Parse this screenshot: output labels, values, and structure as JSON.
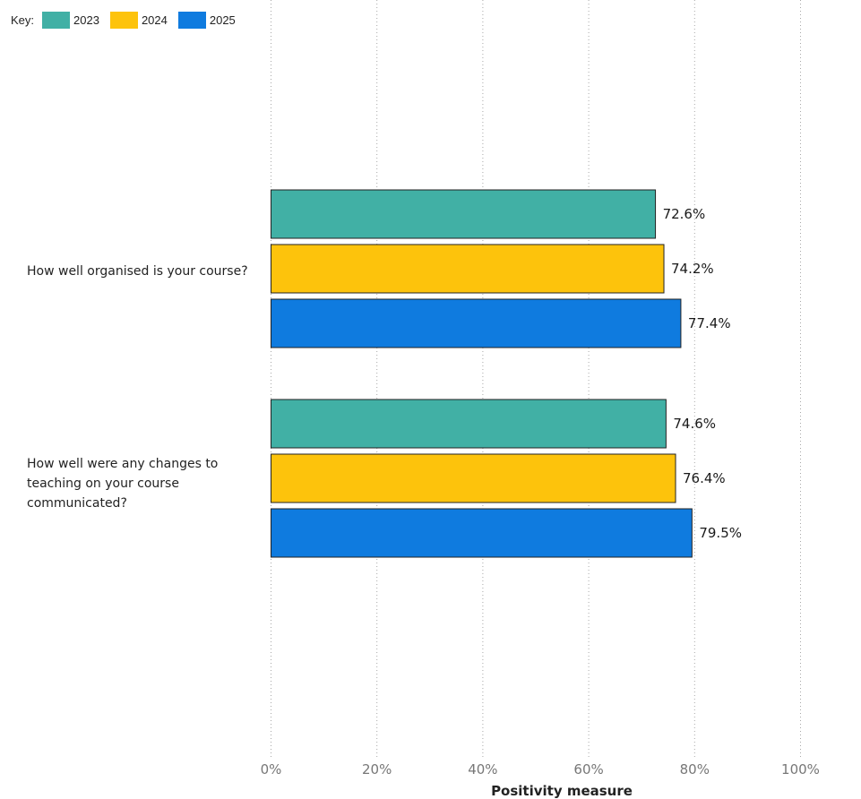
{
  "legend": {
    "key_label": "Key:",
    "items": [
      {
        "label": "2023",
        "color": "#41b0a5"
      },
      {
        "label": "2024",
        "color": "#fdc30c"
      },
      {
        "label": "2025",
        "color": "#0f7bdf"
      }
    ]
  },
  "chart_data": {
    "type": "bar",
    "orientation": "horizontal",
    "categories": [
      "How well organised is your course?",
      "How well were any changes to teaching on your course communicated?"
    ],
    "category_lines": [
      [
        "How well organised is your course?"
      ],
      [
        "How well were any changes to",
        "teaching on your course",
        "communicated?"
      ]
    ],
    "series": [
      {
        "name": "2023",
        "color": "#41b0a5",
        "values": [
          72.6,
          74.6
        ]
      },
      {
        "name": "2024",
        "color": "#fdc30c",
        "values": [
          74.2,
          76.4
        ]
      },
      {
        "name": "2025",
        "color": "#0f7bdf",
        "values": [
          77.4,
          79.5
        ]
      }
    ],
    "data_labels": [
      [
        "72.6%",
        "74.6%"
      ],
      [
        "74.2%",
        "76.4%"
      ],
      [
        "77.4%",
        "79.5%"
      ]
    ],
    "xlim": [
      0,
      100
    ],
    "x_ticks": [
      0,
      20,
      40,
      60,
      80,
      100
    ],
    "x_tick_labels": [
      "0%",
      "20%",
      "40%",
      "60%",
      "80%",
      "100%"
    ],
    "xlabel": "Positivity measure",
    "ylabel": "",
    "grid": "vertical dotted",
    "legend_position": "top-left"
  }
}
